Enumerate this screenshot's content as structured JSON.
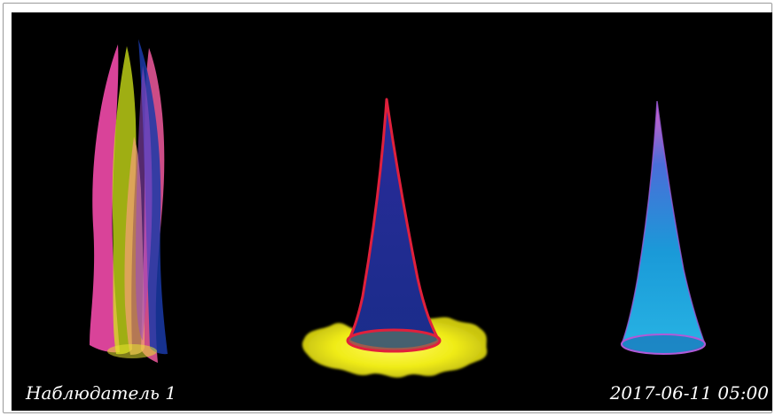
{
  "captions": {
    "observer": "Наблюдатель 1",
    "timestamp": "2017-06-11 05:00"
  },
  "colors": {
    "background": "#000000",
    "frame": "#ffffff",
    "caption_text": "#ffffff",
    "pink": "#ff4fb4",
    "yellow": "#f2ee1a",
    "navy": "#0e2a8e",
    "red": "#e0203c",
    "cyan": "#1aa8e0",
    "magenta": "#e85ad0"
  },
  "figures": [
    {
      "name": "multicolor-petal-cluster"
    },
    {
      "name": "red-outlined-cone-with-yellow-glow"
    },
    {
      "name": "cyan-cone"
    }
  ]
}
